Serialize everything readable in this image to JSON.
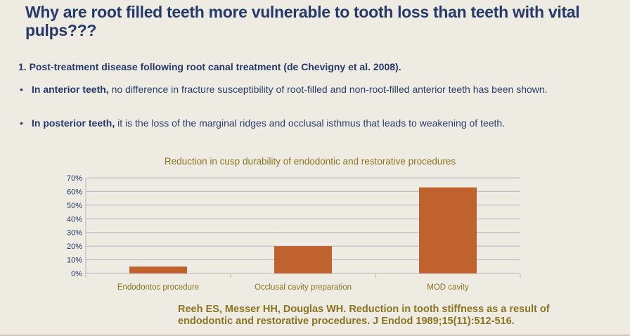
{
  "slide": {
    "title": "Why are root filled teeth more vulnerable to tooth loss than teeth with vital pulps???",
    "point1": "1. Post-treatment disease following root canal treatment (de Chevigny et al. 2008).",
    "bullets": [
      {
        "bold": "In anterior teeth,",
        "text": " no difference in fracture susceptibility of root-filled and non-root-filled anterior teeth has been shown."
      },
      {
        "bold": "In posterior teeth,",
        "text": "  it is the loss of the marginal ridges and occlusal isthmus that leads to weakening of teeth."
      }
    ],
    "bullet_symbol": "•",
    "reference": "Reeh ES, Messer HH, Douglas WH. Reduction in tooth stiffness as a result of endodontic and restorative procedures. J Endod 1989;15(11):512-516."
  },
  "chart_data": {
    "type": "bar",
    "title": "Reduction in cusp durability of endodontic and restorative procedures",
    "categories": [
      "Endodontoc procedure",
      "Occlusal cavity preparation",
      "MOD cavity"
    ],
    "values": [
      5,
      20,
      63
    ],
    "ylim": [
      0,
      70
    ],
    "yticks": [
      "0%",
      "10%",
      "20%",
      "30%",
      "40%",
      "50%",
      "60%",
      "70%"
    ],
    "xlabel": "",
    "ylabel": "",
    "grid": true,
    "legend": "none",
    "colors": {
      "bar": "#c0622d",
      "title": "#8a7420",
      "axis_labels": "#253a6a",
      "grid": "#b8b8c0"
    }
  }
}
